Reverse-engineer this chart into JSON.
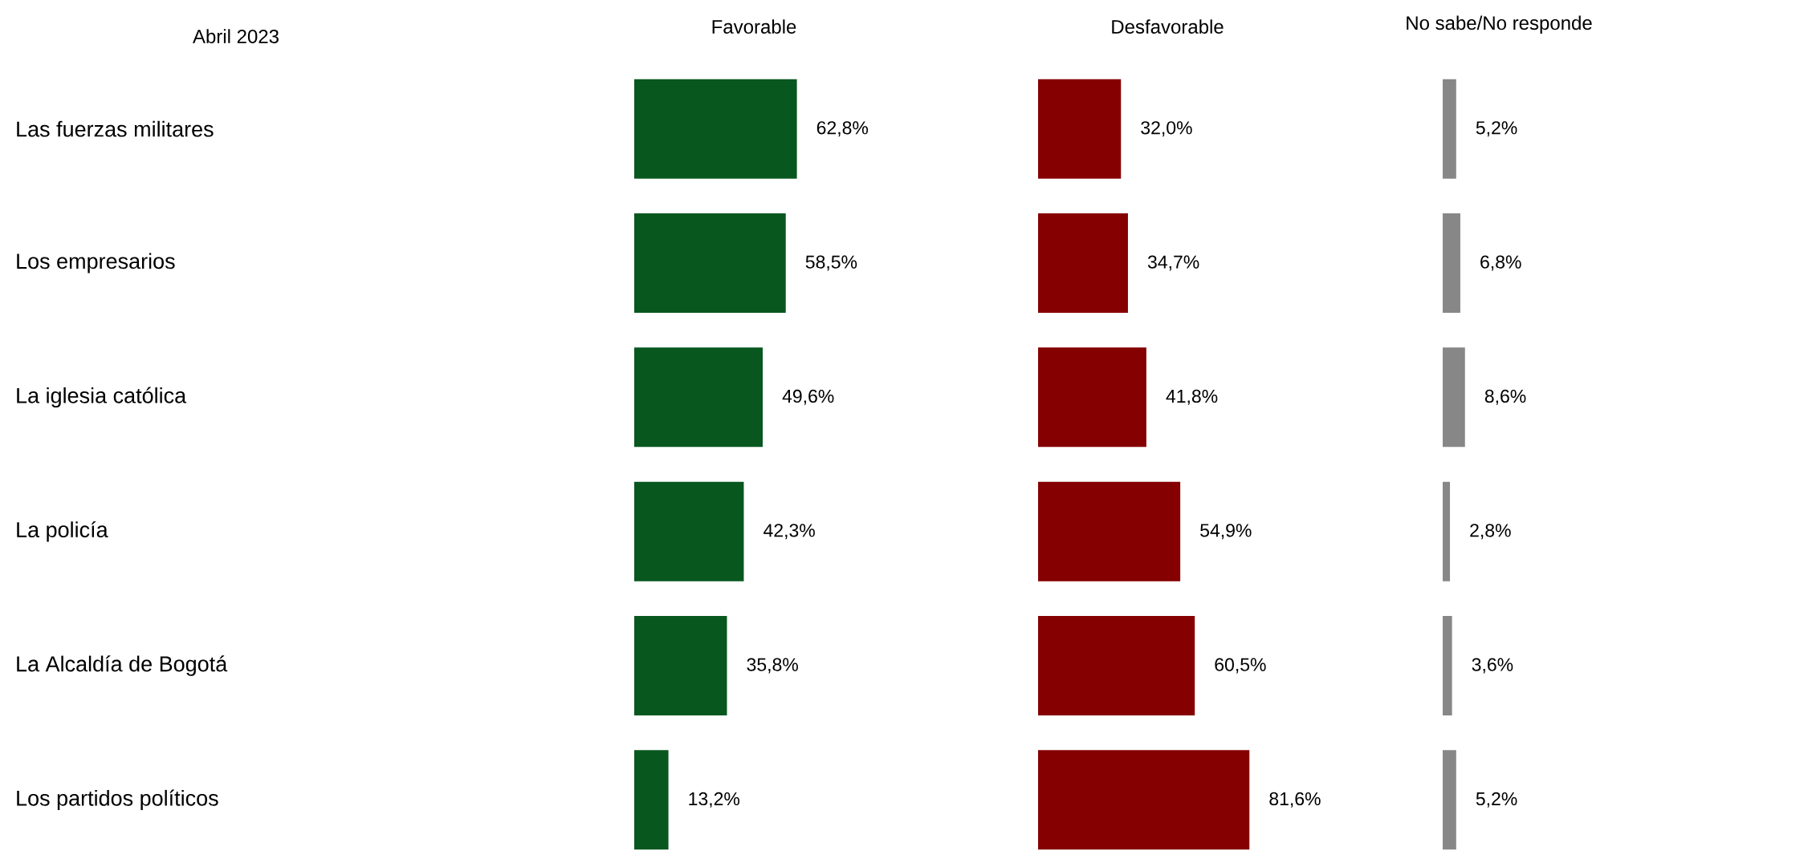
{
  "chart_data": [
    {
      "type": "bar",
      "orientation": "horizontal",
      "title": "Favorable",
      "annotations": [
        "Abril 2023"
      ],
      "tick_labels": "y",
      "categories": [
        "Las fuerzas militares",
        "Los empresarios",
        "La iglesia católica",
        "La policía",
        "La Alcaldía de Bogotá",
        "Los partidos políticos"
      ],
      "values": [
        62.8,
        58.5,
        49.6,
        42.3,
        35.8,
        13.2
      ],
      "color": "#08571f",
      "value_labels": [
        "62,8%",
        "58,5%",
        "49,6%",
        "42,3%",
        "35,8%",
        "13,2%"
      ]
    },
    {
      "type": "bar",
      "orientation": "horizontal",
      "title": "Desfavorable",
      "tick_labels": false,
      "values": [
        32.0,
        34.7,
        41.8,
        54.9,
        60.5,
        81.6
      ],
      "color": "#850000",
      "value_labels": [
        "32,0%",
        "34,7%",
        "41,8%",
        "54,9%",
        "60,5%",
        "81,6%"
      ]
    },
    {
      "type": "bar",
      "orientation": "horizontal",
      "title": "No sabe/No responde",
      "tick_labels": false,
      "values": [
        5.2,
        6.8,
        8.6,
        2.8,
        3.6,
        5.2
      ],
      "color": "#878787",
      "value_labels": [
        "5,2%",
        "6,8%",
        "8,6%",
        "2,8%",
        "3,6%",
        "5,2%"
      ]
    }
  ]
}
